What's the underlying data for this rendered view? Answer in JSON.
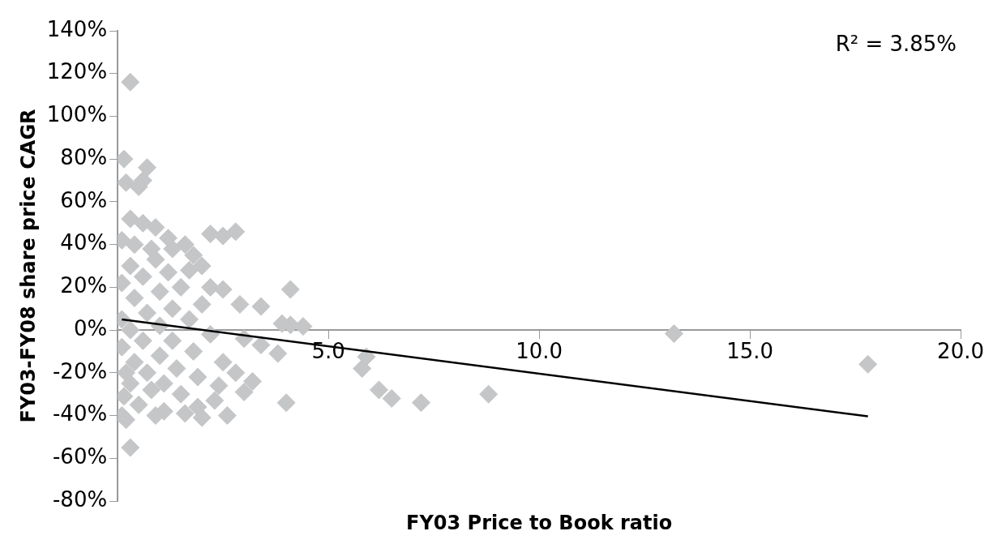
{
  "chart_data": {
    "type": "scatter",
    "xlabel": "FY03 Price to Book ratio",
    "ylabel": "FY03-FY08 share price CAGR",
    "annotations": [
      "R² = 3.85%"
    ],
    "xlim": [
      0,
      20
    ],
    "xticks": [
      {
        "value": 5,
        "label": "5.0"
      },
      {
        "value": 10,
        "label": "10.0"
      },
      {
        "value": 15,
        "label": "15.0"
      },
      {
        "value": 20,
        "label": "20.0"
      }
    ],
    "ylim": [
      -80,
      140
    ],
    "yticks": [
      {
        "value": -80,
        "label": "-80%"
      },
      {
        "value": -60,
        "label": "-60%"
      },
      {
        "value": -40,
        "label": "-40%"
      },
      {
        "value": -20,
        "label": "-20%"
      },
      {
        "value": 0,
        "label": "0%"
      },
      {
        "value": 20,
        "label": "20%"
      },
      {
        "value": 40,
        "label": "40%"
      },
      {
        "value": 60,
        "label": "60%"
      },
      {
        "value": 80,
        "label": "80%"
      },
      {
        "value": 100,
        "label": "100%"
      },
      {
        "value": 120,
        "label": "120%"
      },
      {
        "value": 140,
        "label": "140%"
      }
    ],
    "grid": false,
    "legend": false,
    "marker": "diamond",
    "series": [
      {
        "color": "#c4c6c8",
        "x": [
          0.3,
          0.15,
          0.7,
          0.5,
          0.2,
          0.6,
          0.3,
          0.6,
          0.9,
          1.2,
          1.3,
          0.1,
          0.4,
          0.8,
          1.6,
          2.2,
          2.5,
          2.8,
          2.0,
          1.7,
          2.5,
          4.1,
          2.9,
          3.4,
          4.1,
          4.4,
          3.9,
          3.8,
          3.4,
          3.0,
          5.9,
          5.8,
          4.0,
          6.2,
          6.5,
          7.2,
          8.8,
          13.2,
          17.8,
          0.3,
          0.15,
          0.5,
          1.1,
          1.6,
          2.0,
          2.6,
          3.0,
          2.8,
          2.4,
          3.2,
          2.5,
          0.1,
          0.1,
          0.1,
          0.1,
          0.3,
          0.4,
          0.3,
          0.4,
          0.3,
          0.6,
          0.7,
          0.6,
          0.7,
          0.8,
          0.9,
          1.0,
          1.0,
          1.0,
          1.1,
          1.2,
          1.3,
          1.3,
          1.4,
          1.5,
          1.5,
          1.7,
          1.8,
          1.9,
          2.0,
          2.2,
          2.3,
          1.9,
          0.9,
          2.2,
          1.8,
          0.2,
          0.2
        ],
        "values": [
          116,
          80,
          76,
          67,
          69,
          70,
          52,
          50,
          48,
          43,
          38,
          42,
          40,
          38,
          40,
          45,
          44,
          46,
          30,
          28,
          19,
          19,
          12,
          11,
          2.4,
          1.7,
          3,
          -11,
          -7,
          -4,
          -12.5,
          -18,
          -34,
          -28,
          -32,
          -34,
          -30,
          -1.7,
          -16,
          -55,
          -31,
          -35,
          -38,
          -39,
          -41,
          -40,
          -29,
          -20,
          -26,
          -24,
          -15,
          22,
          5,
          -8,
          -40,
          30,
          15,
          0,
          -15,
          -25,
          25,
          8,
          -5,
          -20,
          -28,
          33,
          18,
          2,
          -12,
          -25,
          27,
          10,
          -5,
          -18,
          -30,
          20,
          5,
          -10,
          -22,
          12,
          -2,
          -33,
          -36,
          -40,
          20,
          35,
          -20,
          -42
        ]
      },
      {
        "type": "line",
        "color": "#000000",
        "marker": "none",
        "x": [
          0.1,
          17.8
        ],
        "values": [
          5,
          -40.4
        ]
      }
    ]
  }
}
